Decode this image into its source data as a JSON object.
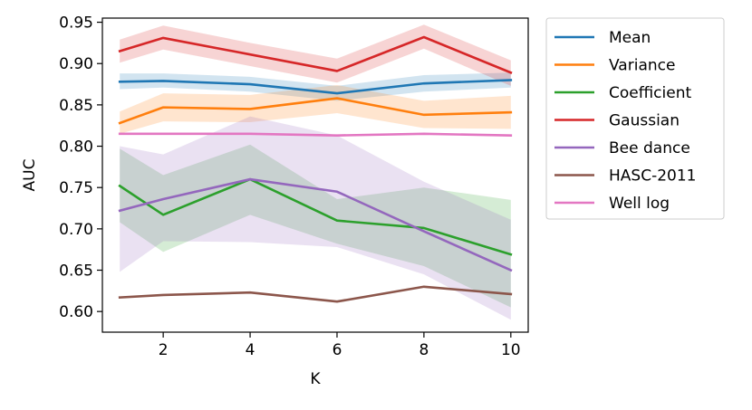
{
  "chart_data": {
    "type": "line",
    "title": "",
    "xlabel": "K",
    "ylabel": "AUC",
    "xlim": [
      0.6,
      10.4
    ],
    "ylim": [
      0.575,
      0.955
    ],
    "xticks": [
      2,
      4,
      6,
      8,
      10
    ],
    "yticks": [
      0.6,
      0.65,
      0.7,
      0.75,
      0.8,
      0.85,
      0.9,
      0.95
    ],
    "ytick_labels": [
      "0.60",
      "0.65",
      "0.70",
      "0.75",
      "0.80",
      "0.85",
      "0.90",
      "0.95"
    ],
    "xtick_labels": [
      "2",
      "4",
      "6",
      "8",
      "10"
    ],
    "x": [
      1,
      2,
      4,
      6,
      8,
      10
    ],
    "legend_position": "outside-right-top",
    "grid": false,
    "series": [
      {
        "name": "Mean",
        "color": "#1f77b4",
        "values": [
          0.878,
          0.879,
          0.875,
          0.864,
          0.876,
          0.88
        ],
        "lower": [
          0.869,
          0.871,
          0.866,
          0.855,
          0.866,
          0.871
        ],
        "upper": [
          0.888,
          0.888,
          0.884,
          0.873,
          0.886,
          0.889
        ]
      },
      {
        "name": "Variance",
        "color": "#ff7f0e",
        "values": [
          0.828,
          0.847,
          0.845,
          0.858,
          0.838,
          0.841
        ],
        "lower": [
          0.815,
          0.83,
          0.829,
          0.84,
          0.822,
          0.821
        ],
        "upper": [
          0.842,
          0.864,
          0.862,
          0.874,
          0.855,
          0.861
        ]
      },
      {
        "name": "Coefficient",
        "color": "#2ca02c",
        "values": [
          0.752,
          0.717,
          0.76,
          0.71,
          0.701,
          0.669
        ],
        "lower": [
          0.708,
          0.672,
          0.717,
          0.682,
          0.655,
          0.605
        ],
        "upper": [
          0.797,
          0.765,
          0.802,
          0.736,
          0.75,
          0.735
        ]
      },
      {
        "name": "Gaussian",
        "color": "#d62728",
        "values": [
          0.915,
          0.931,
          0.911,
          0.891,
          0.932,
          0.889
        ],
        "lower": [
          0.901,
          0.917,
          0.897,
          0.877,
          0.918,
          0.873
        ],
        "upper": [
          0.929,
          0.946,
          0.925,
          0.906,
          0.947,
          0.904
        ]
      },
      {
        "name": "Bee dance",
        "color": "#9467bd",
        "values": [
          0.722,
          0.736,
          0.76,
          0.745,
          0.697,
          0.65
        ],
        "lower": [
          0.648,
          0.685,
          0.684,
          0.678,
          0.645,
          0.59
        ],
        "upper": [
          0.8,
          0.79,
          0.836,
          0.813,
          0.757,
          0.711
        ]
      },
      {
        "name": "HASC-2011",
        "color": "#8c564b",
        "values": [
          0.617,
          0.62,
          0.623,
          0.612,
          0.63,
          0.621
        ]
      },
      {
        "name": "Well log",
        "color": "#e377c2",
        "values": [
          0.815,
          0.815,
          0.815,
          0.813,
          0.815,
          0.813
        ]
      }
    ]
  }
}
